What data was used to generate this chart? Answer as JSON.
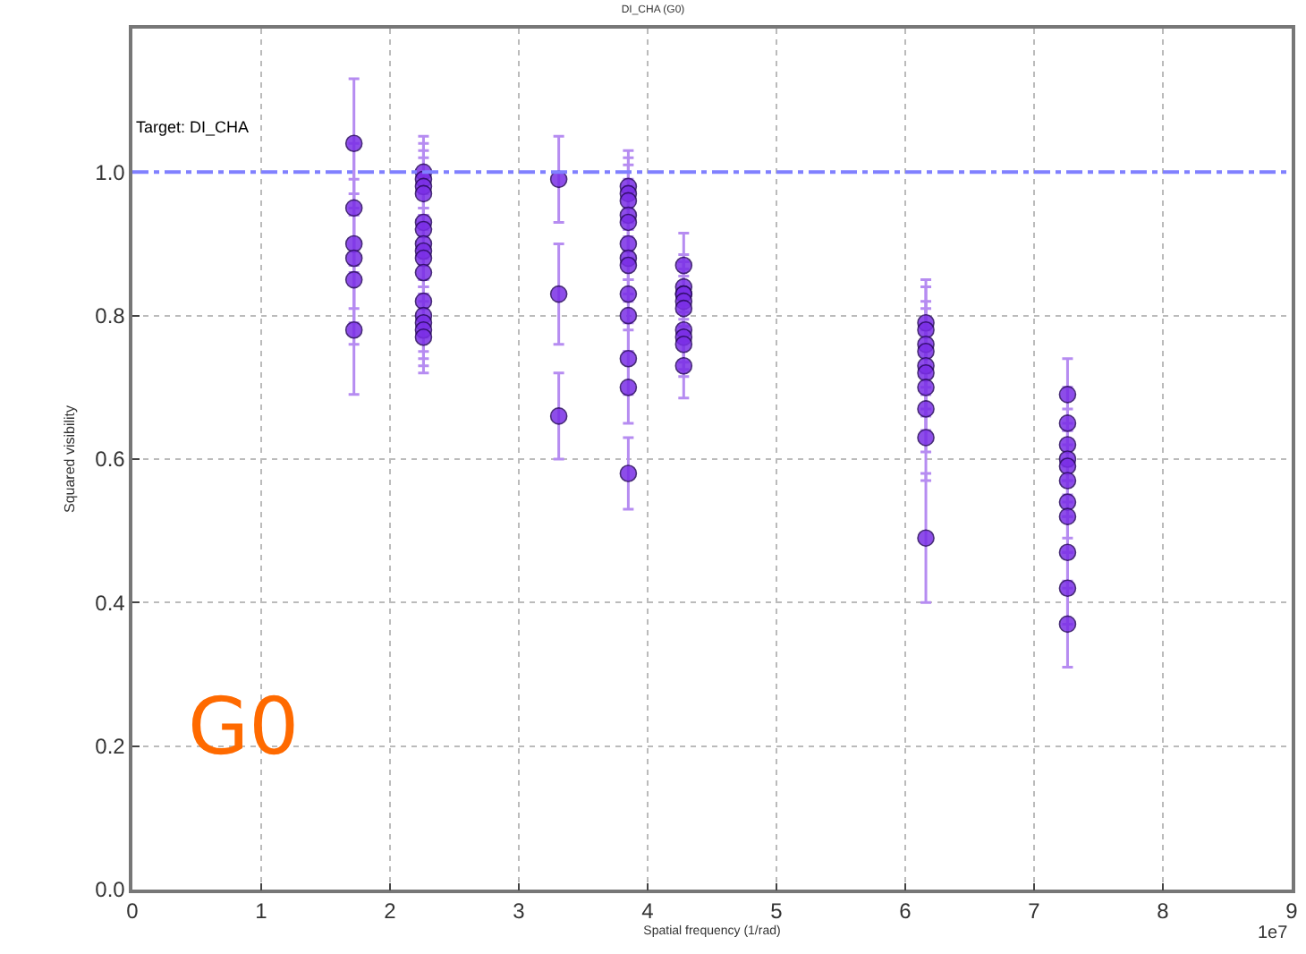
{
  "chart_data": {
    "type": "scatter",
    "title": "DI_CHA (G0)",
    "xlabel": "Spatial frequency (1/rad)",
    "ylabel": "Squared visibility",
    "annotations": [
      "Target: DI_CHA",
      "G0",
      "1e7"
    ],
    "series": [
      {
        "color": "#7a2ee6",
        "x": [
          1.72,
          1.72,
          1.72,
          1.72,
          1.72,
          1.72,
          2.26,
          2.26,
          2.26,
          2.26,
          2.26,
          2.26,
          2.26,
          2.26,
          2.26,
          2.26,
          2.26,
          2.26,
          2.26,
          2.26,
          2.26,
          3.31,
          3.31,
          3.31,
          3.85,
          3.85,
          3.85,
          3.85,
          3.85,
          3.85,
          3.85,
          3.85,
          3.85,
          3.85,
          3.85,
          3.85,
          3.85,
          4.28,
          4.28,
          4.28,
          4.28,
          4.28,
          4.28,
          4.28,
          4.28,
          4.28,
          4.28,
          6.16,
          6.16,
          6.16,
          6.16,
          6.16,
          6.16,
          6.16,
          6.16,
          6.16,
          6.16,
          7.26,
          7.26,
          7.26,
          7.26,
          7.26,
          7.26,
          7.26,
          7.26,
          7.26,
          7.26,
          7.26
        ],
        "values": [
          1.04,
          0.95,
          0.9,
          0.88,
          0.85,
          0.78,
          1.0,
          0.99,
          0.98,
          0.97,
          0.93,
          0.92,
          0.9,
          0.89,
          0.88,
          0.86,
          0.82,
          0.8,
          0.79,
          0.78,
          0.77,
          0.99,
          0.83,
          0.66,
          0.98,
          0.97,
          0.96,
          0.94,
          0.93,
          0.9,
          0.88,
          0.87,
          0.83,
          0.8,
          0.74,
          0.7,
          0.58,
          0.87,
          0.84,
          0.83,
          0.83,
          0.82,
          0.81,
          0.78,
          0.77,
          0.76,
          0.73,
          0.79,
          0.78,
          0.76,
          0.75,
          0.73,
          0.72,
          0.7,
          0.67,
          0.63,
          0.49,
          0.69,
          0.65,
          0.62,
          0.6,
          0.59,
          0.57,
          0.54,
          0.52,
          0.47,
          0.42,
          0.37
        ],
        "errors": [
          0.09,
          0.09,
          0.09,
          0.09,
          0.09,
          0.09,
          0.05,
          0.05,
          0.05,
          0.05,
          0.05,
          0.05,
          0.05,
          0.05,
          0.05,
          0.05,
          0.05,
          0.05,
          0.05,
          0.05,
          0.05,
          0.06,
          0.07,
          0.06,
          0.05,
          0.05,
          0.05,
          0.05,
          0.05,
          0.05,
          0.05,
          0.05,
          0.05,
          0.05,
          0.05,
          0.05,
          0.05,
          0.045,
          0.045,
          0.045,
          0.045,
          0.045,
          0.045,
          0.045,
          0.045,
          0.045,
          0.045,
          0.06,
          0.06,
          0.06,
          0.06,
          0.06,
          0.06,
          0.06,
          0.06,
          0.06,
          0.09,
          0.05,
          0.05,
          0.05,
          0.05,
          0.05,
          0.05,
          0.05,
          0.05,
          0.05,
          0.05,
          0.06
        ]
      }
    ],
    "xlim": [
      0,
      9
    ],
    "xticks": [
      0,
      1,
      2,
      3,
      4,
      5,
      6,
      7,
      8,
      9
    ],
    "ylim": [
      0,
      1.2
    ],
    "yticks": [
      {
        "value": 0,
        "label": "0.0"
      },
      0.2,
      0.4,
      0.6,
      0.8,
      {
        "value": 1,
        "label": "1.0"
      }
    ],
    "ref_lines": [
      {
        "axis": "y",
        "value": 1,
        "color": "#8080ff",
        "line_style": "dashdot"
      }
    ],
    "grid": true,
    "marker": "circle"
  }
}
